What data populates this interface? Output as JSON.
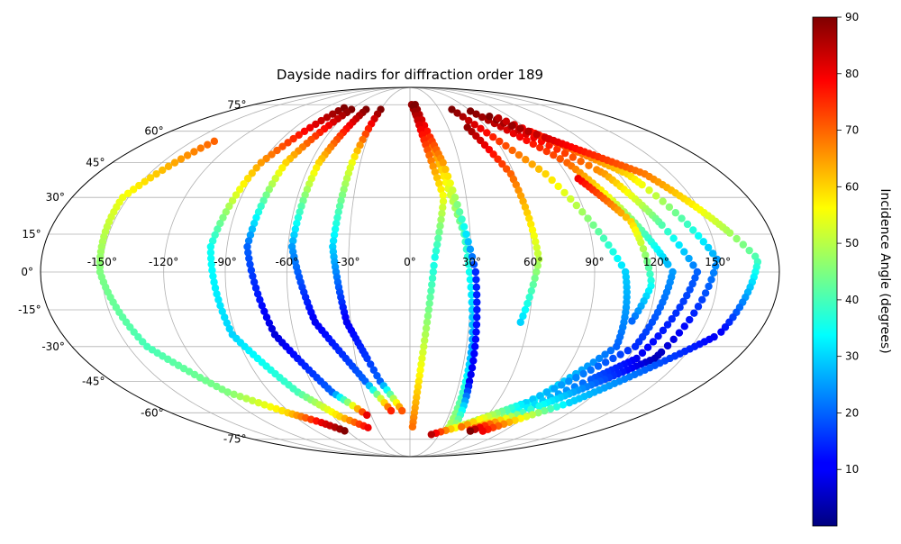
{
  "chart_data": {
    "type": "scatter",
    "projection": "mollweide",
    "title": "Dayside nadirs for diffraction order 189",
    "lon_ticks": [
      "-150°",
      "-120°",
      "-90°",
      "-60°",
      "-30°",
      "0°",
      "30°",
      "60°",
      "90°",
      "120°",
      "150°"
    ],
    "lat_ticks": [
      "75°",
      "60°",
      "45°",
      "30°",
      "15°",
      "0°",
      "-15°",
      "-30°",
      "-45°",
      "-60°",
      "-75°"
    ],
    "grid": true,
    "colormap": "jet",
    "colorbar": {
      "label": "Incidence Angle (degrees)",
      "range": [
        0,
        90
      ],
      "ticks": [
        "10",
        "20",
        "30",
        "40",
        "50",
        "60",
        "70",
        "80",
        "90"
      ]
    },
    "tracks": [
      {
        "lon": [
          -135,
          -153,
          -151,
          -140,
          -117,
          -92,
          -75,
          -62
        ],
        "lat": [
          55,
          30,
          0,
          -30,
          -50,
          -60,
          -65,
          -70
        ],
        "inc": [
          70,
          55,
          45,
          40,
          45,
          60,
          80,
          90
        ]
      },
      {
        "lon": [
          -70,
          -90,
          -98,
          -92,
          -72,
          -55,
          -38
        ],
        "lat": [
          73,
          45,
          10,
          -25,
          -50,
          -62,
          -68
        ],
        "inc": [
          90,
          65,
          35,
          30,
          40,
          60,
          80
        ]
      },
      {
        "lon": [
          -60,
          -75,
          -80,
          -70,
          -50,
          -32
        ],
        "lat": [
          72,
          45,
          10,
          -25,
          -50,
          -62
        ],
        "inc": [
          90,
          60,
          20,
          8,
          20,
          85
        ]
      },
      {
        "lon": [
          -45,
          -55,
          -58,
          -48,
          -27,
          -13
        ],
        "lat": [
          72,
          45,
          10,
          -20,
          -45,
          -60
        ],
        "inc": [
          90,
          60,
          25,
          10,
          20,
          80
        ]
      },
      {
        "lon": [
          -30,
          -35,
          -38,
          -32,
          -18,
          -5
        ],
        "lat": [
          72,
          45,
          10,
          -20,
          -45,
          -60
        ],
        "inc": [
          90,
          55,
          30,
          10,
          20,
          75
        ]
      },
      {
        "lon": [
          2,
          14,
          27,
          33,
          35
        ],
        "lat": [
          75,
          55,
          15,
          -30,
          -68
        ],
        "inc": [
          88,
          70,
          40,
          25,
          50
        ]
      },
      {
        "lon": [
          6,
          20,
          32,
          36,
          40
        ],
        "lat": [
          75,
          45,
          0,
          -45,
          -68
        ],
        "inc": [
          90,
          65,
          15,
          10,
          50
        ]
      },
      {
        "lon": [
          4,
          10,
          18,
          12,
          2
        ],
        "lat": [
          74,
          55,
          30,
          5,
          -70
        ],
        "inc": [
          90,
          75,
          55,
          35,
          70
        ]
      },
      {
        "lon": [
          43,
          78,
          105,
          110,
          82,
          42,
          22
        ],
        "lat": [
          72,
          40,
          0,
          -30,
          -55,
          -68,
          -72
        ],
        "inc": [
          90,
          60,
          30,
          20,
          35,
          55,
          85
        ]
      },
      {
        "lon": [
          60,
          95,
          128,
          120,
          80,
          45
        ],
        "lat": [
          71,
          45,
          0,
          -30,
          -55,
          -68
        ],
        "inc": [
          90,
          70,
          25,
          15,
          30,
          70
        ]
      },
      {
        "lon": [
          72,
          112,
          140,
          125,
          80,
          55
        ],
        "lat": [
          68,
          40,
          0,
          -35,
          -60,
          -70
        ],
        "inc": [
          90,
          65,
          20,
          10,
          35,
          80
        ]
      },
      {
        "lon": [
          78,
          125,
          150,
          135,
          85,
          58
        ],
        "lat": [
          67,
          40,
          5,
          -35,
          -60,
          -70
        ],
        "inc": [
          85,
          60,
          25,
          5,
          40,
          90
        ]
      },
      {
        "lon": [
          82,
          135,
          170,
          160,
          110,
          70
        ],
        "lat": [
          63,
          40,
          5,
          -25,
          -55,
          -70
        ],
        "inc": [
          88,
          68,
          40,
          10,
          30,
          80
        ]
      },
      {
        "lon": [
          45,
          58,
          63,
          56
        ],
        "lat": [
          62,
          40,
          5,
          -20
        ],
        "inc": [
          88,
          70,
          50,
          30
        ]
      },
      {
        "lon": [
          95,
          112,
          118,
          112
        ],
        "lat": [
          38,
          20,
          -5,
          -20
        ],
        "inc": [
          80,
          60,
          35,
          20
        ]
      }
    ]
  }
}
